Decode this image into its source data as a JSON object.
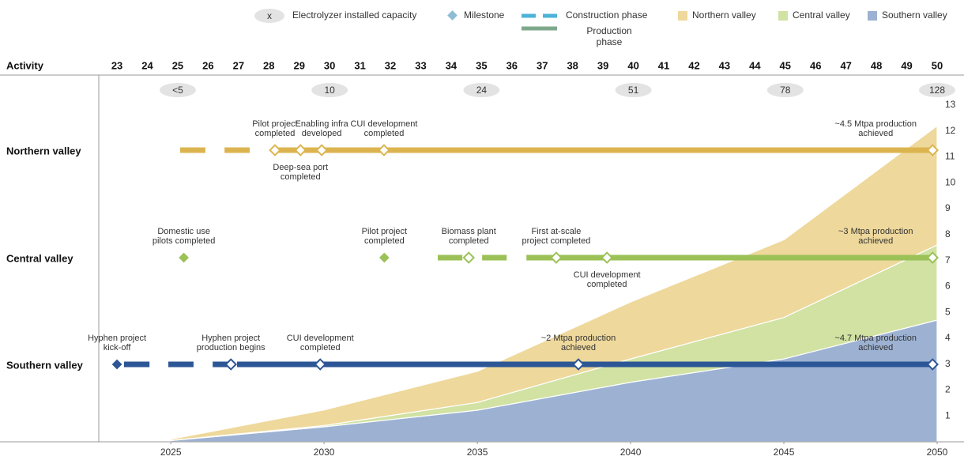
{
  "chart_data": {
    "type": "area",
    "stacked": true,
    "x": [
      2025,
      2030,
      2035,
      2040,
      2045,
      2050
    ],
    "series": [
      {
        "name": "Southern valley",
        "color": "#9db2d3",
        "values": [
          0.05,
          0.58,
          1.22,
          2.3,
          3.2,
          4.7
        ]
      },
      {
        "name": "Central valley",
        "color": "#d1e2a3",
        "values": [
          0,
          0.05,
          0.3,
          0.9,
          1.6,
          2.9
        ]
      },
      {
        "name": "Northern valley",
        "color": "#eed89b",
        "values": [
          0.05,
          0.6,
          1.2,
          2.2,
          3.0,
          4.6
        ]
      }
    ],
    "xlim": [
      2022.65,
      2050
    ],
    "xticks": [
      2025,
      2030,
      2035,
      2040,
      2045,
      2050
    ],
    "ylim": [
      0,
      13
    ],
    "yticks": [
      1,
      2,
      3,
      4,
      5,
      6,
      7,
      8,
      9,
      10,
      11,
      12,
      13
    ],
    "activity_label": "Activity",
    "top_lim": [
      22.4,
      50
    ],
    "top_ticks": [
      23,
      24,
      25,
      26,
      27,
      28,
      29,
      30,
      31,
      32,
      33,
      34,
      35,
      36,
      37,
      38,
      39,
      40,
      41,
      42,
      43,
      44,
      45,
      46,
      47,
      48,
      49,
      50
    ],
    "capacity": {
      "x": [
        25,
        30,
        35,
        40,
        45,
        50
      ],
      "labels": [
        "<5",
        "10",
        "24",
        "51",
        "78",
        "128"
      ]
    },
    "legend": {
      "capacity_symbol": "x",
      "capacity": "Electrolyzer installed capacity",
      "milestone": "Milestone",
      "construction": "Construction phase",
      "production": [
        "Production",
        "phase"
      ],
      "construction_color": "#4db3d8",
      "production_color": "#7fa88b",
      "milestone_color": "#8fbcd4"
    },
    "rows": [
      {
        "name": "Northern valley",
        "color": "#dcb44f",
        "construction": [
          [
            25.08,
            25.91
          ],
          [
            26.54,
            27.37
          ]
        ],
        "production": [
          28.12,
          49.85
        ],
        "milestones": [
          {
            "x": 28.2,
            "label": [
              "Pilot project",
              "completed"
            ],
            "side": "above"
          },
          {
            "x": 29.04,
            "label": [
              "Deep-sea port",
              "completed"
            ],
            "side": "below"
          },
          {
            "x": 29.74,
            "label": [
              "Enabling infra",
              "developed"
            ],
            "side": "above"
          },
          {
            "x": 31.79,
            "label": [
              "CUI development",
              "completed"
            ],
            "side": "above"
          },
          {
            "x": 49.85,
            "label": [
              "~4.5 Mtpa production",
              "achieved"
            ],
            "side": "above"
          }
        ]
      },
      {
        "name": "Central valley",
        "color": "#9bc157",
        "construction": [
          [
            33.56,
            34.37
          ],
          [
            35.02,
            35.83
          ],
          [
            36.48,
            37.36
          ]
        ],
        "production": [
          37.5,
          49.85
        ],
        "milestones": [
          {
            "x": 25.2,
            "label": [
              "Domestic use",
              "pilots completed"
            ],
            "side": "above"
          },
          {
            "x": 31.8,
            "label": [
              "Pilot project",
              "completed"
            ],
            "side": "above"
          },
          {
            "x": 34.58,
            "label": [
              "Biomass plant",
              "completed"
            ],
            "side": "above"
          },
          {
            "x": 37.46,
            "label": [
              "First at-scale",
              "project completed"
            ],
            "side": "above"
          },
          {
            "x": 39.13,
            "label": [
              "CUI development",
              "completed"
            ],
            "side": "below"
          },
          {
            "x": 49.85,
            "label": [
              "~3 Mtpa production",
              "achieved"
            ],
            "side": "above"
          }
        ]
      },
      {
        "name": "Southern valley",
        "color": "#2c5695",
        "construction": [
          [
            23.23,
            24.07
          ],
          [
            24.69,
            25.52
          ],
          [
            26.15,
            26.7
          ]
        ],
        "production": [
          26.95,
          49.85
        ],
        "milestones": [
          {
            "x": 23,
            "label": [
              "Hyphen project",
              "kick-off"
            ],
            "side": "above"
          },
          {
            "x": 26.75,
            "label": [
              "Hyphen project",
              "production begins"
            ],
            "side": "above"
          },
          {
            "x": 29.69,
            "label": [
              "CUI development",
              "completed"
            ],
            "side": "above"
          },
          {
            "x": 38.19,
            "label": [
              "~2 Mtpa production",
              "achieved"
            ],
            "side": "above"
          },
          {
            "x": 49.85,
            "label": [
              "~4.7 Mtpa production",
              "achieved"
            ],
            "side": "above"
          }
        ]
      }
    ]
  }
}
